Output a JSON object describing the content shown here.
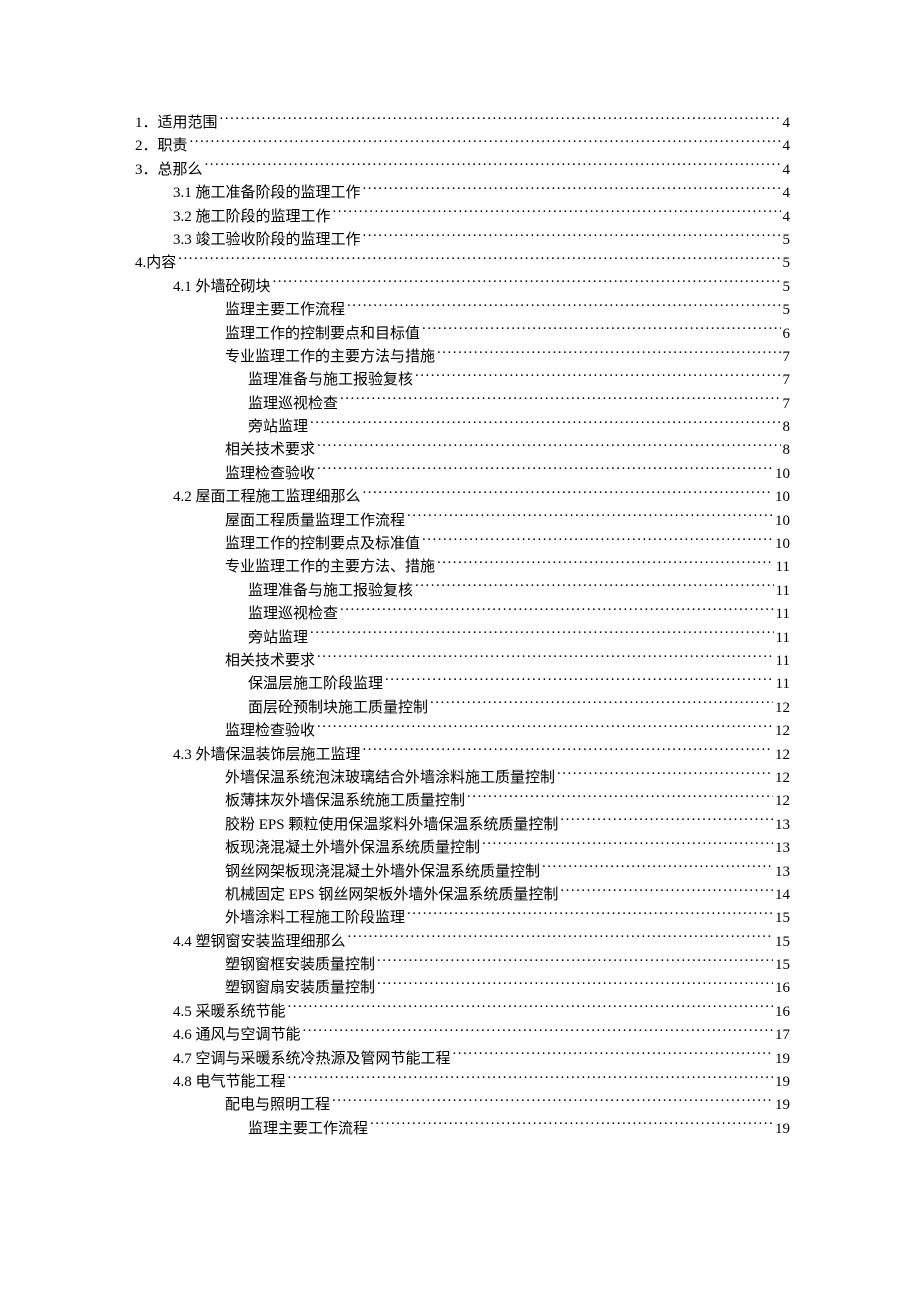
{
  "toc": [
    {
      "label": "1．适用范围",
      "page": "4",
      "level": 0
    },
    {
      "label": "2．职责",
      "page": "4",
      "level": 0
    },
    {
      "label": "3．总那么",
      "page": "4",
      "level": 0
    },
    {
      "label": "3.1 施工准备阶段的监理工作",
      "page": "4",
      "level": 1
    },
    {
      "label": "3.2 施工阶段的监理工作",
      "page": "4",
      "level": 1
    },
    {
      "label": "3.3 竣工验收阶段的监理工作",
      "page": "5",
      "level": 1
    },
    {
      "label": "4.内容",
      "page": "5",
      "level": 0
    },
    {
      "label": "4.1 外墙砼砌块",
      "page": "5",
      "level": 1
    },
    {
      "label": "监理主要工作流程",
      "page": "5",
      "level": 2
    },
    {
      "label": "监理工作的控制要点和目标值",
      "page": "6",
      "level": 2
    },
    {
      "label": "专业监理工作的主要方法与措施",
      "page": "7",
      "level": 2
    },
    {
      "label": "监理准备与施工报验复核",
      "page": "7",
      "level": 3
    },
    {
      "label": "监理巡视检查",
      "page": "7",
      "level": 3
    },
    {
      "label": "旁站监理",
      "page": "8",
      "level": 3
    },
    {
      "label": "相关技术要求",
      "page": "8",
      "level": 2
    },
    {
      "label": "监理检查验收",
      "page": "10",
      "level": 2
    },
    {
      "label": "4.2 屋面工程施工监理细那么",
      "page": "10",
      "level": 1
    },
    {
      "label": "屋面工程质量监理工作流程",
      "page": "10",
      "level": 2
    },
    {
      "label": "监理工作的控制要点及标准值",
      "page": "10",
      "level": 2
    },
    {
      "label": "专业监理工作的主要方法、措施",
      "page": "11",
      "level": 2
    },
    {
      "label": "监理准备与施工报验复核",
      "page": "11",
      "level": 3
    },
    {
      "label": "监理巡视检查",
      "page": "11",
      "level": 3
    },
    {
      "label": "旁站监理",
      "page": "11",
      "level": 3
    },
    {
      "label": "相关技术要求",
      "page": "11",
      "level": 2
    },
    {
      "label": "保温层施工阶段监理",
      "page": "11",
      "level": 3
    },
    {
      "label": "面层砼预制块施工质量控制",
      "page": "12",
      "level": 3
    },
    {
      "label": "监理检查验收",
      "page": "12",
      "level": 2
    },
    {
      "label": "4.3 外墙保温装饰层施工监理",
      "page": "12",
      "level": 1
    },
    {
      "label": "外墙保温系统泡沫玻璃结合外墙涂料施工质量控制",
      "page": "12",
      "level": 2
    },
    {
      "label": "板薄抹灰外墙保温系统施工质量控制",
      "page": "12",
      "level": 2
    },
    {
      "label": "胶粉 EPS 颗粒使用保温浆料外墙保温系统质量控制",
      "page": "13",
      "level": 2
    },
    {
      "label": "板现浇混凝土外墙外保温系统质量控制",
      "page": "13",
      "level": 2
    },
    {
      "label": "钢丝网架板现浇混凝土外墙外保温系统质量控制",
      "page": "13",
      "level": 2
    },
    {
      "label": "机械固定 EPS 钢丝网架板外墙外保温系统质量控制",
      "page": "14",
      "level": 2
    },
    {
      "label": "外墙涂料工程施工阶段监理",
      "page": "15",
      "level": 2
    },
    {
      "label": "4.4 塑钢窗安装监理细那么",
      "page": "15",
      "level": 1
    },
    {
      "label": "塑钢窗框安装质量控制",
      "page": "15",
      "level": 2
    },
    {
      "label": "塑钢窗扇安装质量控制",
      "page": "16",
      "level": 2
    },
    {
      "label": "4.5 采暖系统节能",
      "page": "16",
      "level": 1
    },
    {
      "label": "4.6 通风与空调节能",
      "page": "17",
      "level": 1
    },
    {
      "label": "4.7 空调与采暖系统冷热源及管网节能工程",
      "page": "19",
      "level": 1
    },
    {
      "label": "4.8 电气节能工程",
      "page": "19",
      "level": 1
    },
    {
      "label": "配电与照明工程",
      "page": "19",
      "level": 2
    },
    {
      "label": "监理主要工作流程",
      "page": "19",
      "level": 3
    }
  ]
}
